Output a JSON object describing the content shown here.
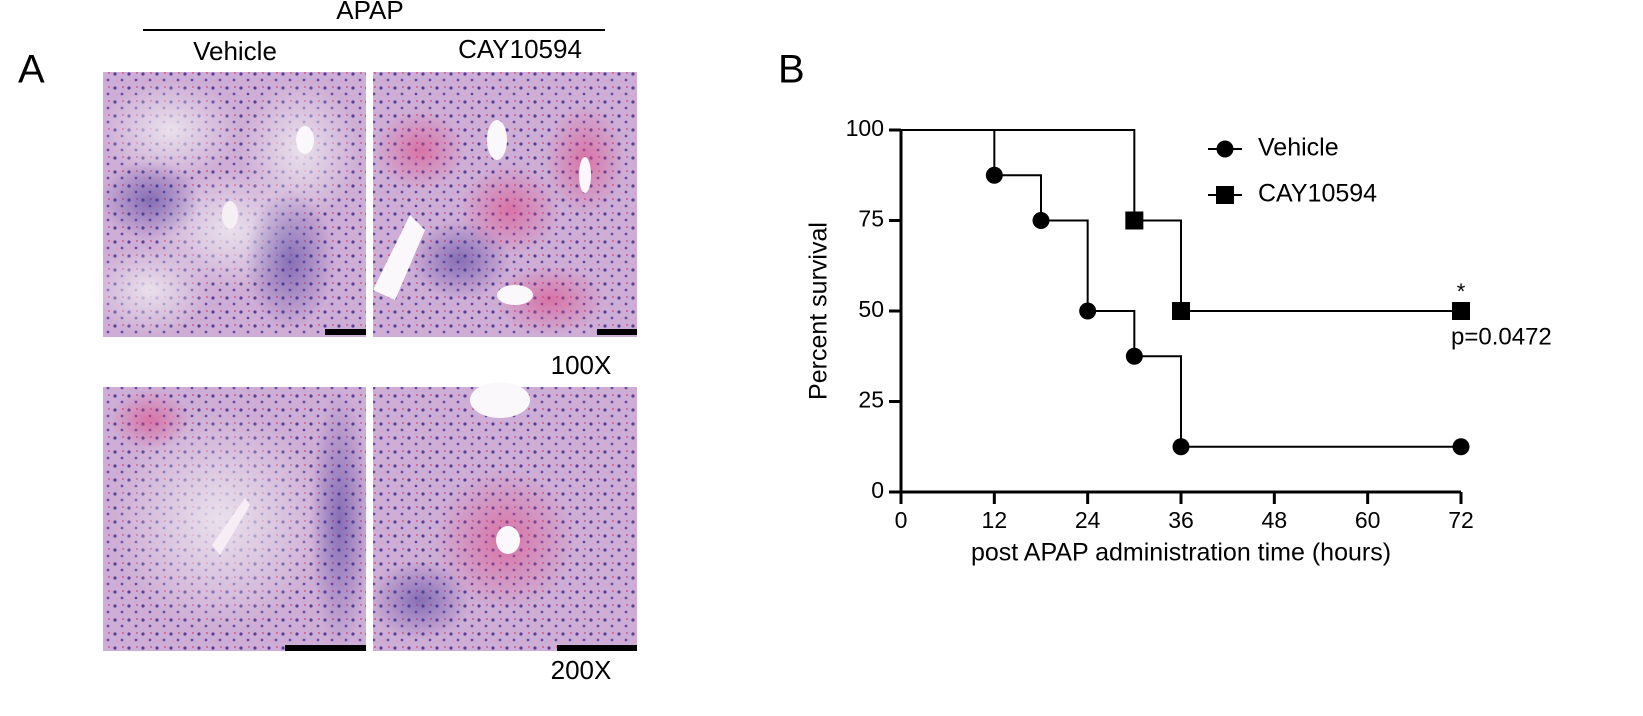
{
  "panel_a": {
    "label": "A",
    "treatment": "APAP",
    "groups": [
      "Vehicle",
      "CAY10594"
    ],
    "magnifications": [
      "100X",
      "200X"
    ]
  },
  "chart_data": {
    "type": "line",
    "drawstyle": "steps-post",
    "panel_label": "B",
    "xlabel": "post APAP administration time (hours)",
    "ylabel": "Percent survival",
    "xlim": [
      0,
      72
    ],
    "ylim": [
      0,
      100
    ],
    "xticks": [
      0,
      12,
      24,
      36,
      48,
      60,
      72
    ],
    "yticks": [
      0,
      25,
      50,
      75,
      100
    ],
    "series": [
      {
        "name": "Vehicle",
        "color": "#000000",
        "marker": "circle",
        "x": [
          0,
          12,
          18,
          24,
          30,
          36,
          72
        ],
        "values": [
          100,
          87.5,
          75,
          50,
          37.5,
          12.5,
          12.5
        ]
      },
      {
        "name": "CAY10594",
        "color": "#000000",
        "marker": "square",
        "x": [
          0,
          30,
          36,
          72
        ],
        "values": [
          100,
          75,
          50,
          50
        ]
      }
    ],
    "annotations": [
      "*",
      "p=0.0472"
    ],
    "legend_position": "upper right"
  }
}
